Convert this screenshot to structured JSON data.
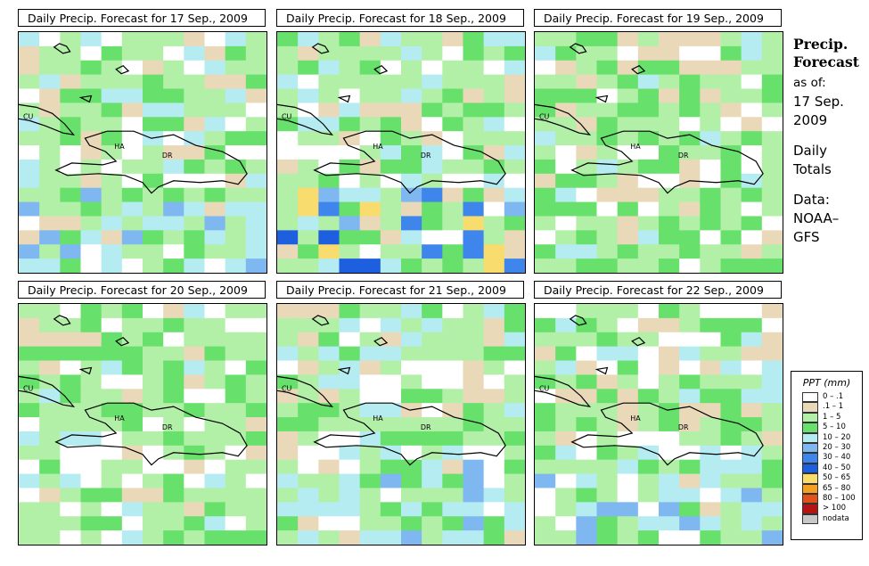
{
  "panels": [
    {
      "title": "Daily Precip. Forecast for  17 Sep., 2009",
      "seed": 17,
      "wet": 1
    },
    {
      "title": "Daily Precip. Forecast for  18 Sep., 2009",
      "seed": 18,
      "wet": 3
    },
    {
      "title": "Daily Precip. Forecast for  19 Sep., 2009",
      "seed": 19,
      "wet": 0
    },
    {
      "title": "Daily Precip. Forecast for  20 Sep., 2009",
      "seed": 20,
      "wet": 0
    },
    {
      "title": "Daily Precip. Forecast for  21 Sep., 2009",
      "seed": 21,
      "wet": 1
    },
    {
      "title": "Daily Precip. Forecast for  22 Sep., 2009",
      "seed": 22,
      "wet": 1
    }
  ],
  "map_labels": {
    "cuba": "CU",
    "haiti": "HA",
    "dominican_republic": "DR"
  },
  "sidebar": {
    "title_line1": "Precip.",
    "title_line2": "Forecast",
    "asof": "as of:",
    "date_line1": "17 Sep.",
    "date_line2": "2009",
    "daily_line1": "Daily",
    "daily_line2": "Totals",
    "data_line1": "Data:",
    "data_line2": "NOAA–",
    "data_line3": "GFS"
  },
  "legend": {
    "title": "PPT (mm)",
    "items": [
      {
        "label": "0 – .1",
        "color": "#ffffff"
      },
      {
        "label": ".1 – 1",
        "color": "#ead9b8"
      },
      {
        "label": "1 – 5",
        "color": "#b2f0a8"
      },
      {
        "label": "5 – 10",
        "color": "#68e06c"
      },
      {
        "label": "10 – 20",
        "color": "#b4ecf2"
      },
      {
        "label": "20 – 30",
        "color": "#7fb8f0"
      },
      {
        "label": "30 – 40",
        "color": "#3f86ec"
      },
      {
        "label": "40 – 50",
        "color": "#1e5fe0"
      },
      {
        "label": "50 – 65",
        "color": "#f8dc6e"
      },
      {
        "label": "65 – 80",
        "color": "#f5a020"
      },
      {
        "label": "80 – 100",
        "color": "#e0521a"
      },
      {
        "label": "> 100",
        "color": "#b41414"
      },
      {
        "label": "nodata",
        "color": "#c8c8c8"
      }
    ]
  }
}
